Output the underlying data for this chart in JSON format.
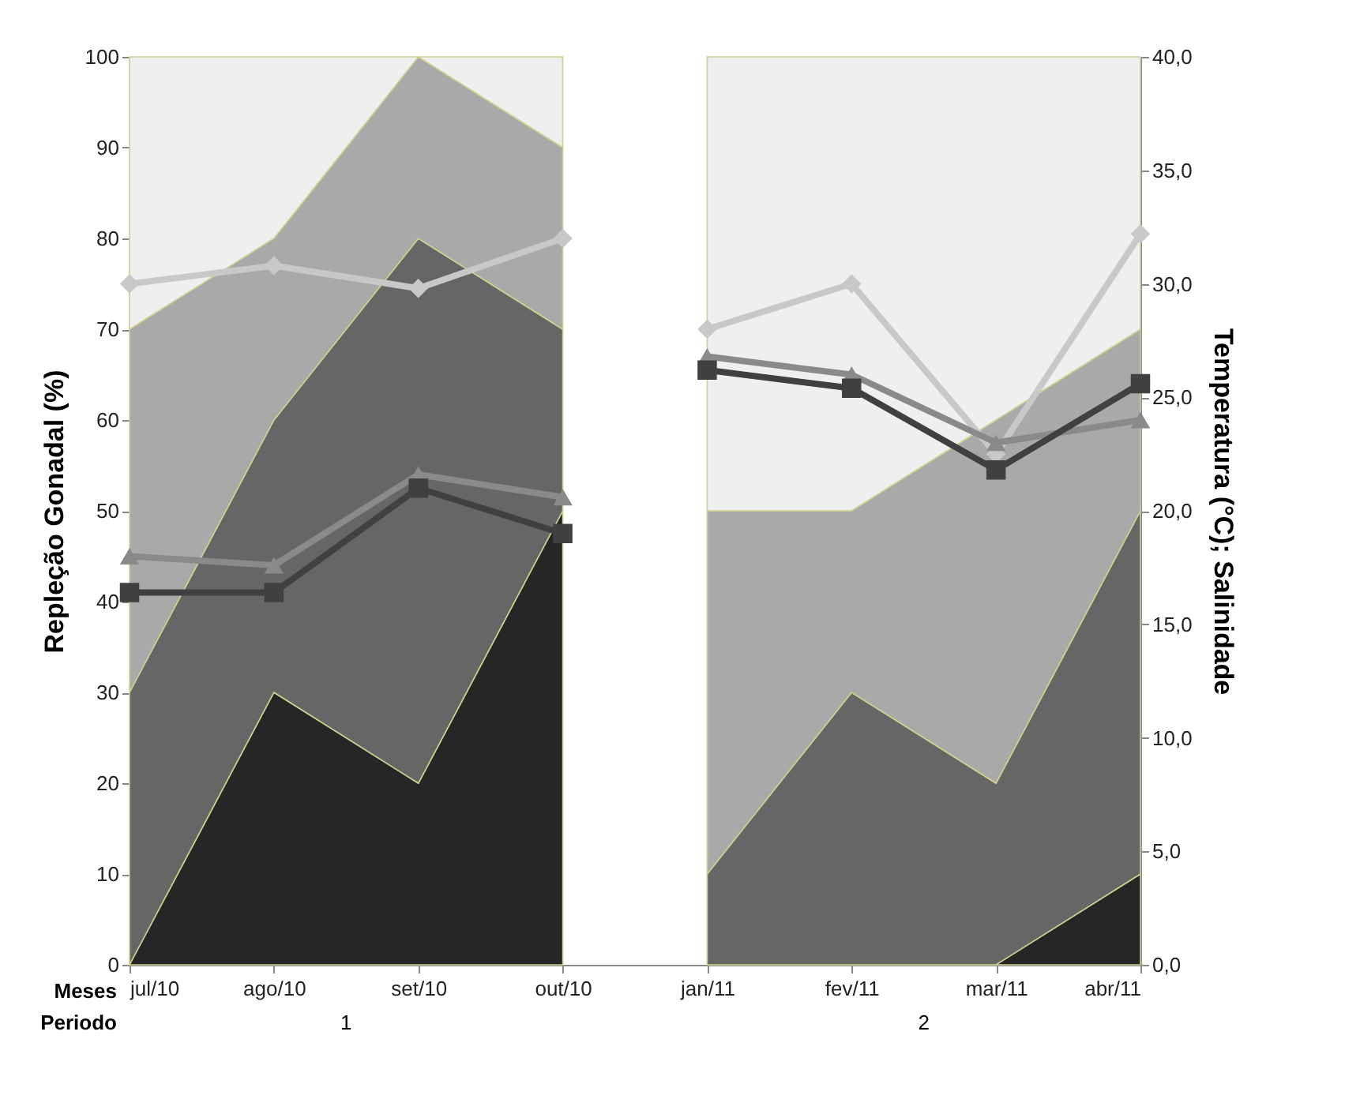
{
  "chart_data": {
    "type": "area",
    "stacked": true,
    "categories": [
      "jul/10",
      "ago/10",
      "set/10",
      "out/10",
      "jan/11",
      "fev/11",
      "mar/11",
      "abr/11"
    ],
    "ylabel": "Repleção Gonadal (%)",
    "y2label": "Temperatura (°C); Salinidade",
    "ylim": [
      0,
      100
    ],
    "yticks": [
      0,
      10,
      20,
      30,
      40,
      50,
      60,
      70,
      80,
      90,
      100
    ],
    "y2lim": [
      0,
      40
    ],
    "y2ticks": [
      {
        "value": 0,
        "label": "0,0"
      },
      {
        "value": 5,
        "label": "5,0"
      },
      {
        "value": 10,
        "label": "10,0"
      },
      {
        "value": 15,
        "label": "15,0"
      },
      {
        "value": 20,
        "label": "20,0"
      },
      {
        "value": 25,
        "label": "25,0"
      },
      {
        "value": 30,
        "label": "30,0"
      },
      {
        "value": 35,
        "label": "35,0"
      },
      {
        "value": 40,
        "label": "40,0"
      }
    ],
    "grid": false,
    "annotations": [
      "Meses",
      "Periodo",
      "1",
      "2"
    ],
    "series": [
      {
        "color": "#262626",
        "values": [
          0,
          30,
          20,
          50,
          null,
          null,
          null,
          null
        ]
      },
      {
        "color": "#262626",
        "values": [
          null,
          null,
          null,
          null,
          0,
          0,
          0,
          10
        ]
      },
      {
        "color": "#666666",
        "values": [
          30,
          30,
          60,
          20,
          null,
          null,
          null,
          null
        ]
      },
      {
        "color": "#666666",
        "values": [
          null,
          null,
          null,
          null,
          10,
          30,
          20,
          40
        ]
      },
      {
        "color": "#a9a9a9",
        "values": [
          40,
          20,
          20,
          20,
          null,
          null,
          null,
          null
        ]
      },
      {
        "color": "#a9a9a9",
        "values": [
          null,
          null,
          null,
          null,
          40,
          20,
          40,
          20
        ]
      },
      {
        "color": "#efefef",
        "values": [
          30,
          20,
          0,
          10,
          null,
          null,
          null,
          null
        ]
      },
      {
        "color": "#efefef",
        "values": [
          null,
          null,
          null,
          null,
          50,
          50,
          40,
          30
        ]
      },
      {
        "type": "line",
        "axis": "y2",
        "marker": "diamond",
        "color": "#c8c8c8",
        "values": [
          30,
          30.8,
          29.8,
          32,
          null,
          null,
          null,
          null
        ]
      },
      {
        "type": "line",
        "axis": "y2",
        "marker": "diamond",
        "color": "#c8c8c8",
        "values": [
          null,
          null,
          null,
          null,
          28,
          30,
          22.5,
          32.2
        ]
      },
      {
        "type": "line",
        "axis": "y2",
        "marker": "triangle",
        "color": "#8a8a8a",
        "values": [
          18,
          17.6,
          21.6,
          20.6,
          null,
          null,
          null,
          null
        ]
      },
      {
        "type": "line",
        "axis": "y2",
        "marker": "triangle",
        "color": "#8a8a8a",
        "values": [
          null,
          null,
          null,
          null,
          26.8,
          26,
          23,
          24
        ]
      },
      {
        "type": "line",
        "axis": "y2",
        "marker": "square",
        "color": "#404040",
        "values": [
          16.4,
          16.4,
          21,
          19,
          null,
          null,
          null,
          null
        ]
      },
      {
        "type": "line",
        "axis": "y2",
        "marker": "square",
        "color": "#404040",
        "values": [
          null,
          null,
          null,
          null,
          26.2,
          25.4,
          21.8,
          25.6
        ]
      }
    ]
  }
}
